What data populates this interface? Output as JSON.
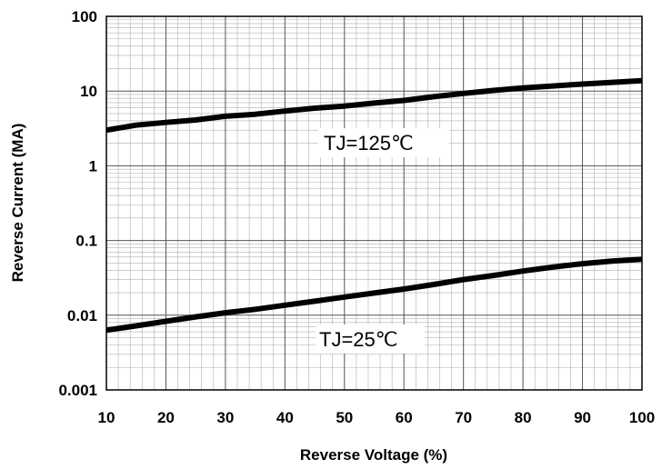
{
  "chart_data": {
    "type": "line",
    "title": "",
    "xlabel": "Reverse Voltage (%)",
    "ylabel": "Reverse Current (MA)",
    "xlim": [
      10,
      100
    ],
    "ylim": [
      0.001,
      100
    ],
    "y_scale": "log",
    "grid": true,
    "x_ticks": [
      "10",
      "20",
      "30",
      "40",
      "50",
      "60",
      "70",
      "80",
      "90",
      "100"
    ],
    "y_ticks": [
      "0.001",
      "0.01",
      "0.1",
      "1",
      "10",
      "100"
    ],
    "series": [
      {
        "name": "TJ=125℃",
        "x": [
          10,
          15,
          20,
          25,
          30,
          35,
          40,
          45,
          50,
          55,
          60,
          65,
          70,
          75,
          80,
          85,
          90,
          95,
          100
        ],
        "y": [
          3.0,
          3.5,
          3.8,
          4.1,
          4.6,
          4.9,
          5.4,
          5.9,
          6.3,
          6.9,
          7.5,
          8.4,
          9.3,
          10.2,
          11.0,
          11.7,
          12.4,
          13.1,
          13.8
        ]
      },
      {
        "name": "TJ=25℃",
        "x": [
          10,
          15,
          20,
          25,
          30,
          35,
          40,
          45,
          50,
          55,
          60,
          65,
          70,
          75,
          80,
          85,
          90,
          95,
          100
        ],
        "y": [
          0.0063,
          0.0072,
          0.0083,
          0.0095,
          0.0108,
          0.012,
          0.0136,
          0.0154,
          0.0175,
          0.0198,
          0.0224,
          0.0258,
          0.03,
          0.034,
          0.039,
          0.044,
          0.049,
          0.053,
          0.056
        ]
      }
    ]
  }
}
